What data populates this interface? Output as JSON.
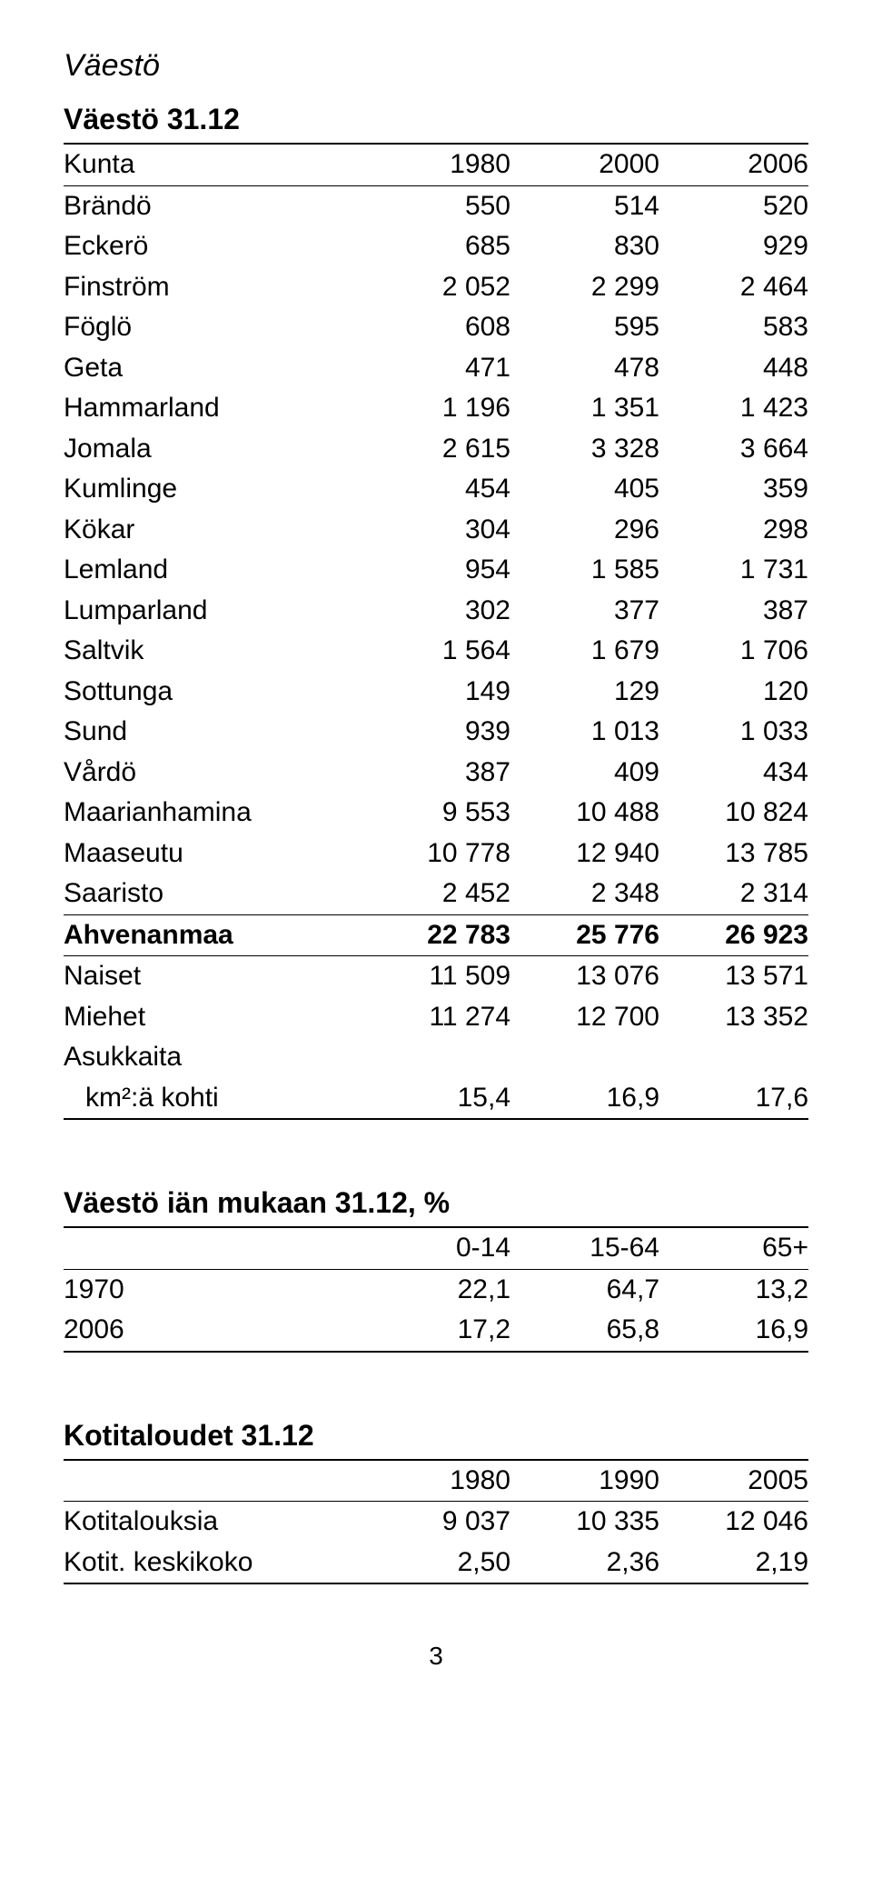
{
  "section_heading": "Väestö",
  "table1": {
    "title": "Väestö 31.12",
    "col_headers": [
      "Kunta",
      "1980",
      "2000",
      "2006"
    ],
    "rows": [
      [
        "Brändö",
        "550",
        "514",
        "520"
      ],
      [
        "Eckerö",
        "685",
        "830",
        "929"
      ],
      [
        "Finström",
        "2 052",
        "2 299",
        "2 464"
      ],
      [
        "Föglö",
        "608",
        "595",
        "583"
      ],
      [
        "Geta",
        "471",
        "478",
        "448"
      ],
      [
        "Hammarland",
        "1 196",
        "1 351",
        "1 423"
      ],
      [
        "Jomala",
        "2 615",
        "3 328",
        "3 664"
      ],
      [
        "Kumlinge",
        "454",
        "405",
        "359"
      ],
      [
        "Kökar",
        "304",
        "296",
        "298"
      ],
      [
        "Lemland",
        "954",
        "1 585",
        "1 731"
      ],
      [
        "Lumparland",
        "302",
        "377",
        "387"
      ],
      [
        "Saltvik",
        "1 564",
        "1 679",
        "1 706"
      ],
      [
        "Sottunga",
        "149",
        "129",
        "120"
      ],
      [
        "Sund",
        "939",
        "1 013",
        "1 033"
      ],
      [
        "Vårdö",
        "387",
        "409",
        "434"
      ],
      [
        "Maarianhamina",
        "9 553",
        "10 488",
        "10 824"
      ],
      [
        "Maaseutu",
        "10 778",
        "12 940",
        "13 785"
      ],
      [
        "Saaristo",
        "2 452",
        "2 348",
        "2 314"
      ]
    ],
    "total_row": [
      "Ahvenanmaa",
      "22 783",
      "25 776",
      "26 923"
    ],
    "extra_rows": [
      [
        "Naiset",
        "11 509",
        "13 076",
        "13 571"
      ],
      [
        "Miehet",
        "11 274",
        "12 700",
        "13 352"
      ]
    ],
    "density_label1": "Asukkaita",
    "density_label2": "  km²:ä kohti",
    "density_vals": [
      "15,4",
      "16,9",
      "17,6"
    ]
  },
  "table2": {
    "title": "Väestö iän mukaan 31.12, %",
    "col_headers": [
      "",
      "0-14",
      "15-64",
      "65+"
    ],
    "rows": [
      [
        "1970",
        "22,1",
        "64,7",
        "13,2"
      ],
      [
        "2006",
        "17,2",
        "65,8",
        "16,9"
      ]
    ]
  },
  "table3": {
    "title": "Kotitaloudet 31.12",
    "col_headers": [
      "",
      "1980",
      "1990",
      "2005"
    ],
    "rows": [
      [
        "Kotitalouksia",
        "9 037",
        "10 335",
        "12 046"
      ],
      [
        "Kotit. keskikoko",
        "2,50",
        "2,36",
        "2,19"
      ]
    ]
  },
  "page_number": "3"
}
